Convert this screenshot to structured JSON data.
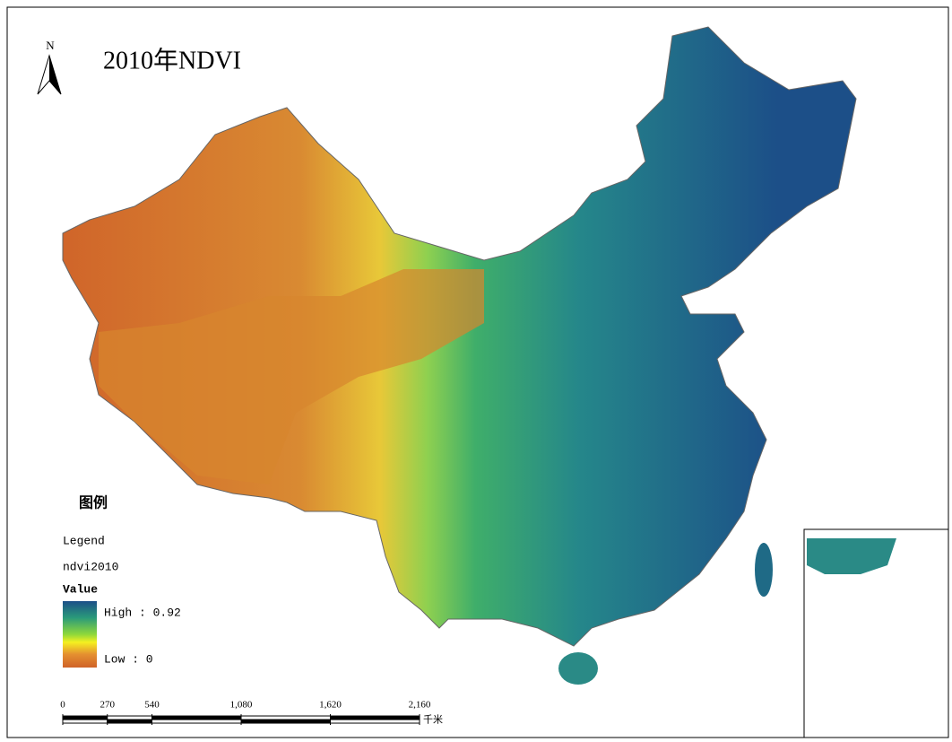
{
  "north": "N",
  "title": "2010年NDVI",
  "legend": {
    "heading": "图例",
    "title": "Legend",
    "layer": "ndvi2010",
    "field": "Value",
    "high": "High : 0.92",
    "low": "Low : 0"
  },
  "scale_bar": {
    "max": 2160,
    "unit": "千米",
    "ticks": [
      0,
      270,
      540,
      {
        "value": 1080,
        "label": "1,080"
      },
      {
        "value": 1620,
        "label": "1,620"
      },
      {
        "value": 2160,
        "label": "2,160"
      }
    ]
  }
}
